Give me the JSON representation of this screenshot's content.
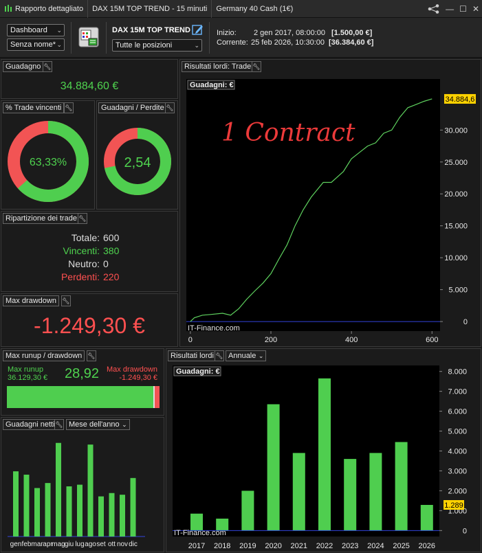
{
  "titlebar": {
    "app": "Rapporto dettagliato",
    "strategy": "DAX 15M TOP TREND - 15 minuti",
    "instrument": "Germany 40 Cash (1€)"
  },
  "toolbar": {
    "dashboard": "Dashboard",
    "config_name": "Senza nome*",
    "strategy_name": "DAX 15M TOP TREND",
    "positions": "Tutte le posizioni",
    "start_label": "Inizio:",
    "start_date": "2 gen 2017, 08:00:00",
    "start_value": "[1.500,00 €]",
    "current_label": "Corrente:",
    "current_date": "25 feb 2026, 10:30:00",
    "current_value": "[36.384,60 €]"
  },
  "gain": {
    "title": "Guadagno",
    "value": "34.884,60 €"
  },
  "win_pct": {
    "title": "% Trade vincenti",
    "value": "63,33%",
    "fraction": 0.6333
  },
  "gain_loss": {
    "title": "Guadagni / Perdite",
    "value": "2,54",
    "fraction": 0.717
  },
  "breakdown": {
    "title": "Ripartizione dei trade",
    "total_label": "Totale:",
    "total": "600",
    "win_label": "Vincenti:",
    "win": "380",
    "neutral_label": "Neutro:",
    "neutral": "0",
    "loss_label": "Perdenti:",
    "loss": "220"
  },
  "max_dd": {
    "title": "Max drawdown",
    "value": "-1.249,30 €"
  },
  "runup": {
    "title": "Max runup / drawdown",
    "runup_label": "Max runup",
    "runup_value": "36.129,30 €",
    "ratio": "28,92",
    "dd_label": "Max drawdown",
    "dd_value": "-1.249,30 €",
    "runup_fraction": 0.967
  },
  "monthly": {
    "title": "Guadagni netti",
    "dropdown": "Mese dell'anno",
    "months": [
      "gen",
      "feb",
      "mar",
      "apr",
      "mag",
      "giu",
      "lug",
      "ago",
      "set",
      "ott",
      "nov",
      "dic"
    ],
    "values": [
      3900,
      3700,
      2900,
      3200,
      5600,
      3000,
      3100,
      5500,
      2400,
      2600,
      2500,
      3500
    ]
  },
  "equity": {
    "title": "Risultati lordi: Trade",
    "label": "Guadagni: €",
    "annotation": "1 Contract",
    "last_value": "34.884,6",
    "credit": "IT-Finance.com"
  },
  "yearly": {
    "title": "Risultati lordi",
    "dropdown": "Annuale",
    "label": "Guadagni: €",
    "last_value": "1.289",
    "credit": "IT-Finance.com"
  },
  "chart_data": [
    {
      "type": "line",
      "title": "Guadagni: €",
      "x": [
        0,
        10,
        30,
        50,
        80,
        100,
        120,
        140,
        160,
        180,
        200,
        220,
        240,
        260,
        280,
        300,
        330,
        350,
        380,
        400,
        420,
        440,
        460,
        480,
        500,
        520,
        540,
        560,
        580,
        600
      ],
      "series": [
        {
          "values": [
            0,
            600,
            1000,
            1100,
            1300,
            1000,
            2000,
            3500,
            4800,
            6000,
            7500,
            9800,
            12000,
            15000,
            17500,
            19500,
            21800,
            21800,
            23500,
            25500,
            26500,
            27500,
            28000,
            29500,
            30000,
            32000,
            33500,
            34000,
            34500,
            34884.6
          ]
        }
      ],
      "xlim": [
        -10,
        620
      ],
      "ylim": [
        -1500,
        38000
      ],
      "xticks": [
        0,
        200,
        400,
        600
      ],
      "yticks": [
        0,
        5000,
        10000,
        15000,
        20000,
        25000,
        30000
      ]
    },
    {
      "type": "bar",
      "title": "Guadagni: €",
      "categories": [
        "2017",
        "2018",
        "2019",
        "2020",
        "2021",
        "2022",
        "2023",
        "2024",
        "2025",
        "2026"
      ],
      "values": [
        850,
        600,
        2000,
        6350,
        3900,
        7650,
        3600,
        3900,
        4450,
        1289
      ],
      "ylim": [
        -300,
        8300
      ],
      "yticks": [
        0,
        1000,
        2000,
        3000,
        4000,
        5000,
        6000,
        7000,
        8000
      ]
    }
  ]
}
